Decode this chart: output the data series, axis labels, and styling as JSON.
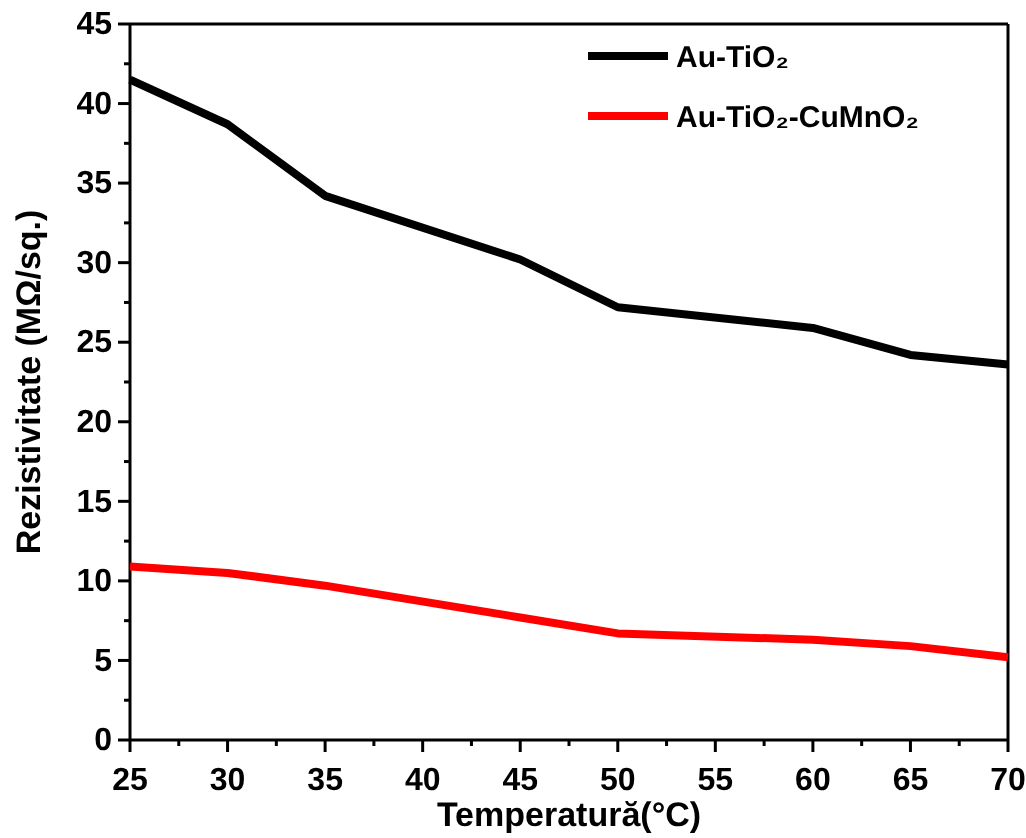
{
  "chart_data": {
    "type": "line",
    "xlabel": "Temperatură(°C)",
    "ylabel": "Rezistivitate (MΩ/sq.)",
    "xlim": [
      25,
      70
    ],
    "ylim": [
      0,
      45
    ],
    "xticks": [
      25,
      {
        "value": 27.5,
        "label": null
      },
      30,
      {
        "value": 32.5,
        "label": null
      },
      35,
      {
        "value": 37.5,
        "label": null
      },
      40,
      {
        "value": 42.5,
        "label": null
      },
      45,
      {
        "value": 47.5,
        "label": null
      },
      50,
      {
        "value": 52.5,
        "label": null
      },
      55,
      {
        "value": 57.5,
        "label": null
      },
      60,
      {
        "value": 62.5,
        "label": null
      },
      65,
      {
        "value": 67.5,
        "label": null
      },
      70
    ],
    "yticks": [
      0,
      {
        "value": 2.5,
        "label": null
      },
      5,
      {
        "value": 7.5,
        "label": null
      },
      10,
      {
        "value": 12.5,
        "label": null
      },
      15,
      {
        "value": 17.5,
        "label": null
      },
      20,
      {
        "value": 22.5,
        "label": null
      },
      25,
      {
        "value": 27.5,
        "label": null
      },
      30,
      {
        "value": 32.5,
        "label": null
      },
      35,
      {
        "value": 37.5,
        "label": null
      },
      40,
      {
        "value": 42.5,
        "label": null
      },
      45
    ],
    "x": [
      25,
      30,
      35,
      45,
      50,
      60,
      65,
      70
    ],
    "legend": "top right",
    "grid": false,
    "marker": "none",
    "line_style": "solid",
    "series": [
      {
        "name": "Au-TiO₂",
        "color": "#000000",
        "values": [
          41.5,
          38.7,
          34.2,
          30.2,
          27.2,
          25.9,
          24.2,
          23.6
        ]
      },
      {
        "name": "Au-TiO₂-CuMnO₂",
        "color": "#ff0000",
        "values": [
          10.9,
          10.5,
          9.7,
          7.7,
          6.7,
          6.3,
          5.9,
          5.2
        ]
      }
    ]
  }
}
